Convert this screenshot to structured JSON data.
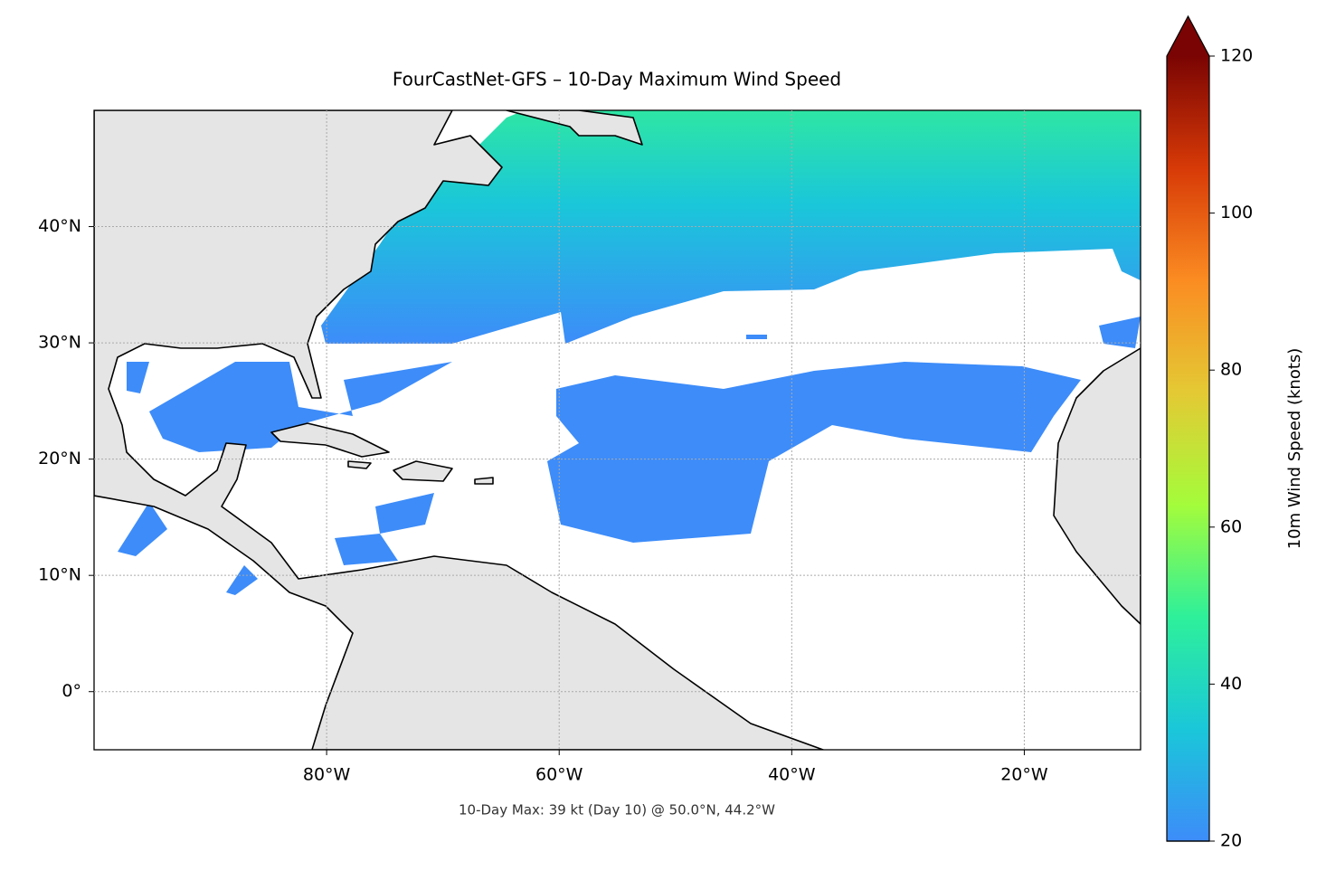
{
  "map": {
    "title": "FourCastNet-GFS – 10-Day Maximum Wind Speed",
    "annotation": "10-Day Max: 39 kt (Day 10) @ 50.0°N, 44.2°W",
    "lonlim": [
      -100,
      -10
    ],
    "latlim": [
      -5,
      50
    ],
    "lon_ticks": [
      {
        "value": -80,
        "label": "80°W"
      },
      {
        "value": -60,
        "label": "60°W"
      },
      {
        "value": -40,
        "label": "40°W"
      },
      {
        "value": -20,
        "label": "20°W"
      }
    ],
    "lat_ticks": [
      {
        "value": 0,
        "label": "0°"
      },
      {
        "value": 10,
        "label": "10°N"
      },
      {
        "value": 20,
        "label": "20°N"
      },
      {
        "value": 30,
        "label": "30°N"
      },
      {
        "value": 40,
        "label": "40°N"
      }
    ],
    "colorbar": {
      "label": "10m Wind Speed (knots)",
      "lim": [
        20,
        120
      ],
      "ticks": [
        20,
        40,
        60,
        80,
        100,
        120
      ],
      "colors": [
        "#3d8cf9",
        "#1ac7d9",
        "#2ef09a",
        "#a4fc3b",
        "#e4c934",
        "#fb8c22",
        "#d73a07",
        "#7a0403"
      ],
      "extend": "max"
    }
  }
}
